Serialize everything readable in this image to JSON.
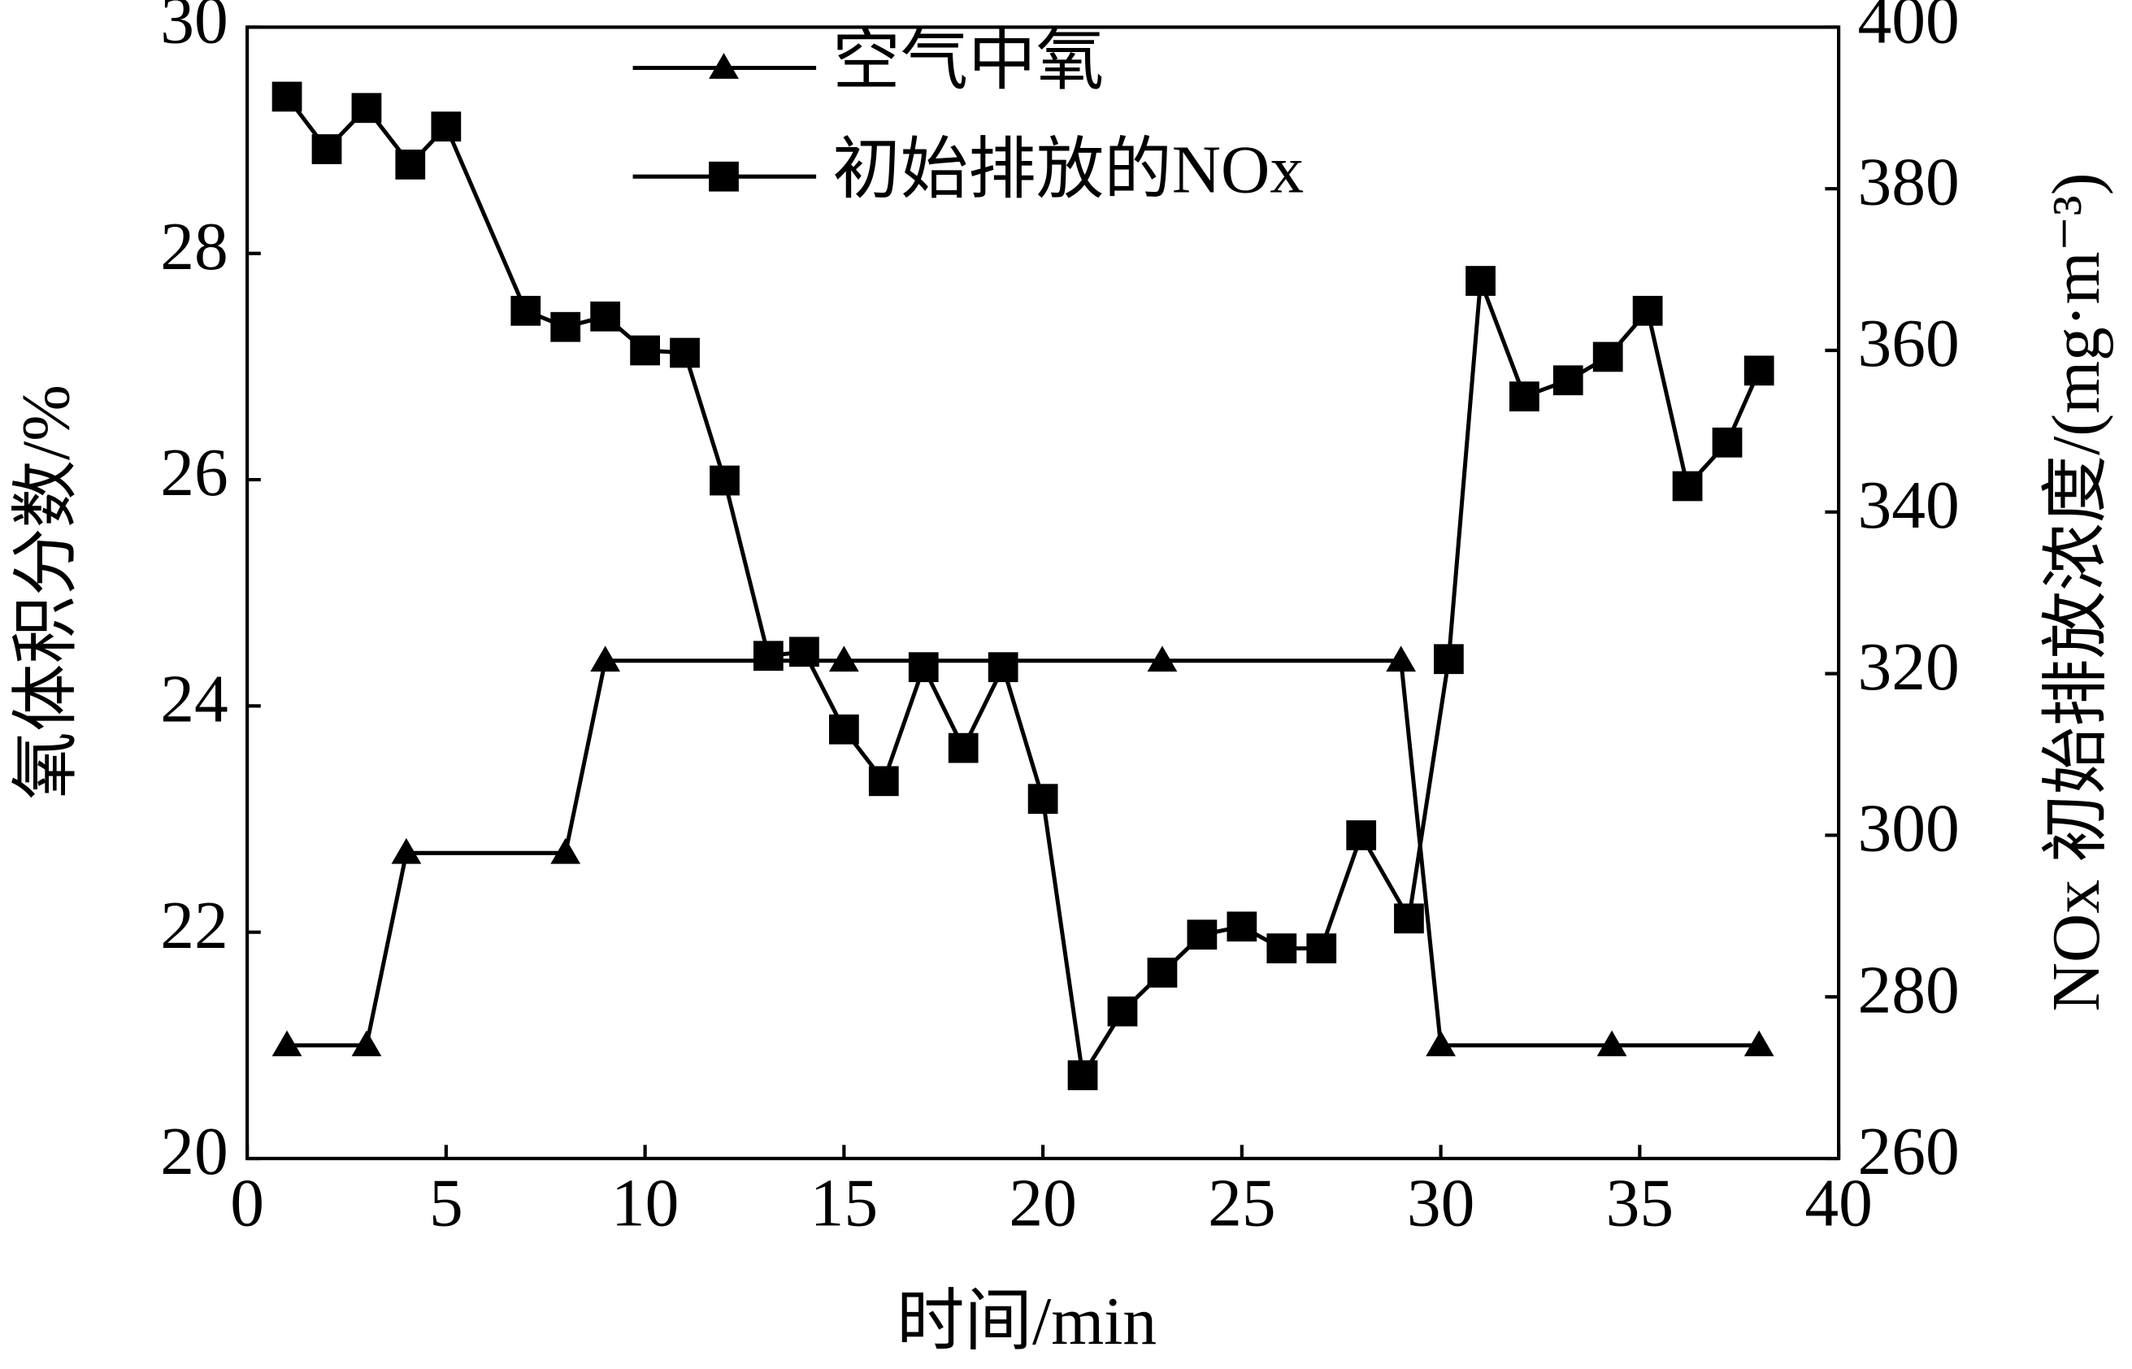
{
  "chart_data": {
    "type": "line",
    "x_label": "时间/min",
    "y_label": "氧体积分数/%",
    "y2_label": "NOx 初始排放浓度/(mg·m⁻³)",
    "xlim": [
      0,
      40
    ],
    "xticks": [
      0,
      5,
      10,
      15,
      20,
      25,
      30,
      35,
      40
    ],
    "ylim": [
      20,
      30
    ],
    "yticks": [
      20,
      22,
      24,
      26,
      28,
      30
    ],
    "y2lim": [
      260,
      400
    ],
    "y2ticks": [
      260,
      280,
      300,
      320,
      340,
      360,
      380,
      400
    ],
    "legend": "top",
    "series": [
      {
        "name": "空气中氧",
        "color": "#000000",
        "marker": "triangle",
        "x": [
          1,
          3,
          4,
          8,
          9,
          15,
          23,
          29,
          30,
          34.3,
          38
        ],
        "values": [
          21,
          21,
          22.7,
          22.7,
          24.4,
          24.4,
          24.4,
          24.4,
          21,
          21,
          21
        ]
      },
      {
        "name": "初始排放的NOx",
        "color": "#000000",
        "marker": "square",
        "axis": "y2",
        "x": [
          1,
          2,
          3,
          4.1,
          5,
          7,
          8,
          9,
          10,
          11,
          12,
          13.1,
          14,
          15,
          16,
          17,
          18,
          19,
          20,
          21,
          22,
          23,
          24,
          25,
          26,
          27,
          28,
          29.2,
          30.2,
          31,
          32.1,
          33.2,
          34.2,
          35.2,
          36.2,
          37.2,
          38
        ],
        "values": [
          391.4,
          384.9,
          390,
          383,
          387.7,
          364.9,
          362.9,
          364.2,
          360,
          359.7,
          343.9,
          322.2,
          322.7,
          313.1,
          306.7,
          320.8,
          310.8,
          320.8,
          304.5,
          270.3,
          278.2,
          283,
          287.7,
          288.7,
          286,
          286,
          300,
          289.7,
          321.8,
          368.6,
          354.3,
          356.3,
          359.2,
          364.9,
          343.2,
          348.6,
          357.5
        ]
      }
    ]
  }
}
